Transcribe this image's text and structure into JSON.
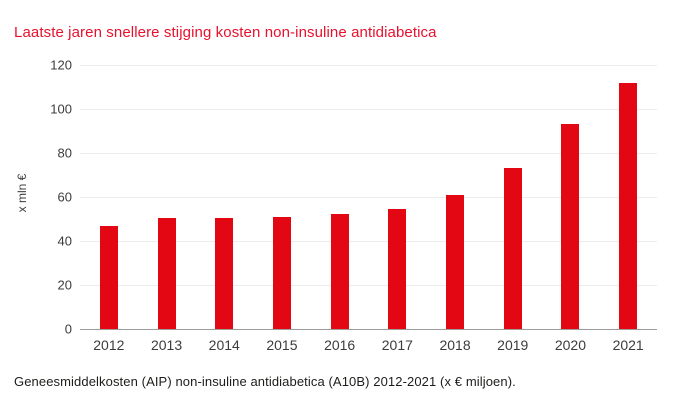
{
  "title": {
    "text": "Laatste jaren snellere stijging kosten non-insuline antidiabetica",
    "color": "#e8112d"
  },
  "caption": {
    "text": "Geneesmiddelkosten (AIP) non-insuline antidiabetica (A10B) 2012-2021 (x € miljoen)."
  },
  "colors": {
    "bar": "#e30613",
    "gridline": "#ececec",
    "baseline": "#9d9d9c",
    "axis_text": "#3c3c3b",
    "caption_text": "#1d1d1b",
    "background": "#ffffff"
  },
  "chart_data": {
    "type": "bar",
    "title": "Laatste jaren snellere stijging kosten non-insuline antidiabetica",
    "categories": [
      "2012",
      "2013",
      "2014",
      "2015",
      "2016",
      "2017",
      "2018",
      "2019",
      "2020",
      "2021"
    ],
    "values": [
      47,
      50.5,
      50.5,
      51,
      52.5,
      54.5,
      61,
      73,
      93,
      112
    ],
    "xlabel": "",
    "ylabel": "x mln €",
    "ylim": [
      0,
      120
    ],
    "yticks": [
      0,
      20,
      40,
      60,
      80,
      100,
      120
    ],
    "grid": true,
    "legend": false,
    "bar_color": "#e30613"
  }
}
